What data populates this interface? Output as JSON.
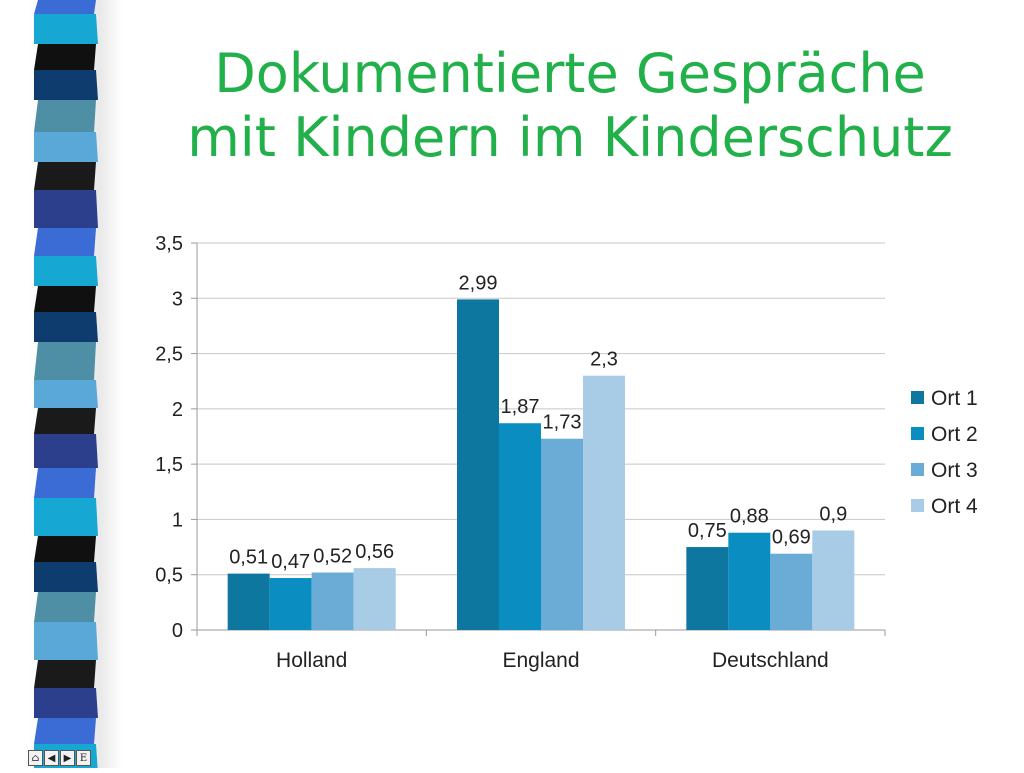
{
  "slide": {
    "title_line1": "Dokumentierte Gespräche",
    "title_line2": "mit Kindern im Kinderschutz"
  },
  "colors": {
    "title": "#22b04a",
    "series": [
      "#0e77a0",
      "#0a8ec2",
      "#6aacd6",
      "#a8cbe6"
    ],
    "strip": [
      "#3b6bd4",
      "#0f3c6e",
      "#1a1a1a",
      "#17a7d3",
      "#4f8fa6",
      "#2b3f8c",
      "#101010",
      "#5aa8d8"
    ]
  },
  "chart_data": {
    "type": "bar",
    "categories": [
      "Holland",
      "England",
      "Deutschland"
    ],
    "series": [
      {
        "name": "Ort 1",
        "values": [
          0.51,
          2.99,
          0.75
        ],
        "labels": [
          "0,51",
          "2,99",
          "0,75"
        ]
      },
      {
        "name": "Ort 2",
        "values": [
          0.47,
          1.87,
          0.88
        ],
        "labels": [
          "0,47",
          "1,87",
          "0,88"
        ]
      },
      {
        "name": "Ort 3",
        "values": [
          0.52,
          1.73,
          0.69
        ],
        "labels": [
          "0,52",
          "1,73",
          "0,69"
        ]
      },
      {
        "name": "Ort 4",
        "values": [
          0.56,
          2.3,
          0.9
        ],
        "labels": [
          "0,56",
          "2,3",
          "0,9"
        ]
      }
    ],
    "yticks": [
      "0",
      "0,5",
      "1",
      "1,5",
      "2",
      "2,5",
      "3",
      "3,5"
    ],
    "ylim": [
      0,
      3.5
    ],
    "grid": true,
    "legend": "right",
    "xlabel": "",
    "ylabel": ""
  },
  "nav": {
    "home_icon": "home-icon",
    "back_icon": "triangle-left-icon",
    "forward_icon": "triangle-right-icon",
    "end_label": "E"
  }
}
